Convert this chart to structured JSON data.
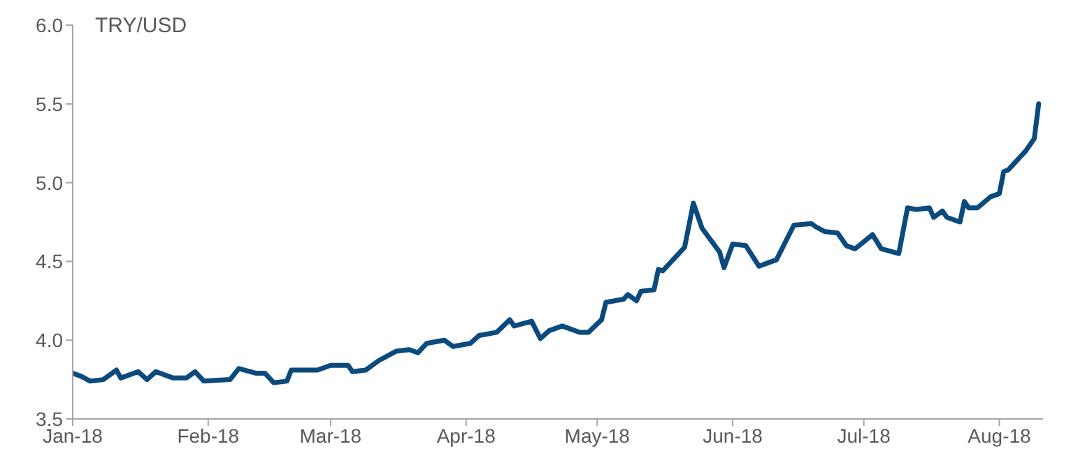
{
  "chart_data": {
    "type": "line",
    "ylabel": "TRY/USD",
    "x": [
      "2018-01-01",
      "2018-01-03",
      "2018-01-05",
      "2018-01-08",
      "2018-01-11",
      "2018-01-12",
      "2018-01-16",
      "2018-01-18",
      "2018-01-20",
      "2018-01-24",
      "2018-01-27",
      "2018-01-29",
      "2018-01-31",
      "2018-02-06",
      "2018-02-08",
      "2018-02-12",
      "2018-02-14",
      "2018-02-16",
      "2018-02-19",
      "2018-02-20",
      "2018-02-26",
      "2018-03-01",
      "2018-03-05",
      "2018-03-06",
      "2018-03-09",
      "2018-03-12",
      "2018-03-16",
      "2018-03-19",
      "2018-03-21",
      "2018-03-23",
      "2018-03-27",
      "2018-03-29",
      "2018-04-02",
      "2018-04-04",
      "2018-04-08",
      "2018-04-11",
      "2018-04-12",
      "2018-04-16",
      "2018-04-18",
      "2018-04-20",
      "2018-04-23",
      "2018-04-27",
      "2018-04-29",
      "2018-05-02",
      "2018-05-03",
      "2018-05-07",
      "2018-05-08",
      "2018-05-10",
      "2018-05-11",
      "2018-05-14",
      "2018-05-15",
      "2018-05-16",
      "2018-05-21",
      "2018-05-23",
      "2018-05-25",
      "2018-05-29",
      "2018-05-30",
      "2018-06-01",
      "2018-06-04",
      "2018-06-07",
      "2018-06-09",
      "2018-06-11",
      "2018-06-15",
      "2018-06-19",
      "2018-06-20",
      "2018-06-22",
      "2018-06-25",
      "2018-06-27",
      "2018-06-29",
      "2018-07-03",
      "2018-07-05",
      "2018-07-09",
      "2018-07-11",
      "2018-07-13",
      "2018-07-16",
      "2018-07-17",
      "2018-07-19",
      "2018-07-20",
      "2018-07-23",
      "2018-07-24",
      "2018-07-25",
      "2018-07-27",
      "2018-07-30",
      "2018-08-01",
      "2018-08-02",
      "2018-08-03",
      "2018-08-07",
      "2018-08-09",
      "2018-08-10"
    ],
    "series": [
      {
        "color": "#0b4a7d",
        "values": [
          3.79,
          3.77,
          3.74,
          3.75,
          3.81,
          3.76,
          3.8,
          3.75,
          3.8,
          3.76,
          3.76,
          3.8,
          3.74,
          3.75,
          3.82,
          3.79,
          3.79,
          3.73,
          3.74,
          3.81,
          3.81,
          3.84,
          3.84,
          3.8,
          3.81,
          3.87,
          3.93,
          3.94,
          3.92,
          3.98,
          4.0,
          3.96,
          3.98,
          4.03,
          4.05,
          4.13,
          4.09,
          4.12,
          4.01,
          4.06,
          4.09,
          4.05,
          4.05,
          4.13,
          4.24,
          4.26,
          4.29,
          4.25,
          4.31,
          4.32,
          4.45,
          4.44,
          4.59,
          4.87,
          4.71,
          4.56,
          4.46,
          4.61,
          4.6,
          4.47,
          4.49,
          4.51,
          4.73,
          4.74,
          4.72,
          4.69,
          4.68,
          4.6,
          4.58,
          4.67,
          4.58,
          4.55,
          4.84,
          4.83,
          4.84,
          4.78,
          4.82,
          4.78,
          4.75,
          4.88,
          4.84,
          4.84,
          4.91,
          4.93,
          5.07,
          5.08,
          5.2,
          5.28,
          5.5
        ]
      }
    ],
    "xlim": [
      "2018-01-01",
      "2018-08-11"
    ],
    "xticks": [
      {
        "value": "2018-01-01",
        "label": "Jan-18"
      },
      {
        "value": "2018-02-01",
        "label": "Feb-18"
      },
      {
        "value": "2018-03-01",
        "label": "Mar-18"
      },
      {
        "value": "2018-04-01",
        "label": "Apr-18"
      },
      {
        "value": "2018-05-01",
        "label": "May-18"
      },
      {
        "value": "2018-06-01",
        "label": "Jun-18"
      },
      {
        "value": "2018-07-01",
        "label": "Jul-18"
      },
      {
        "value": "2018-08-01",
        "label": "Aug-18"
      }
    ],
    "ylim": [
      3.5,
      6.0
    ],
    "yticks": [
      {
        "value": 3.5,
        "label": "3.5"
      },
      {
        "value": 4.0,
        "label": "4.0"
      },
      {
        "value": 4.5,
        "label": "4.5"
      },
      {
        "value": 5.0,
        "label": "5.0"
      },
      {
        "value": 5.5,
        "label": "5.5"
      },
      {
        "value": 6.0,
        "label": "6.0"
      }
    ],
    "grid": false,
    "legend": false,
    "marker": "none",
    "line_style": "solid"
  }
}
